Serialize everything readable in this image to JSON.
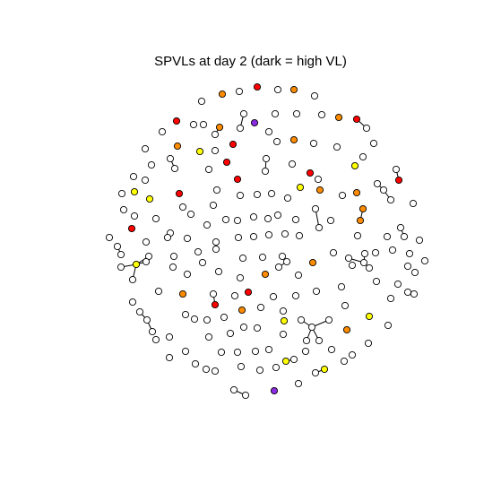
{
  "title": "SPVLs at day 2 (dark = high VL)",
  "legend_note": "dark = high VL",
  "node_colors": {
    "white": "#ffffff",
    "yellow": "#ffff00",
    "orange": "#ff8c00",
    "red": "#ff0000",
    "purple": "#8a2be2"
  },
  "node_stroke": "#000000",
  "edge_stroke": "#000000"
}
